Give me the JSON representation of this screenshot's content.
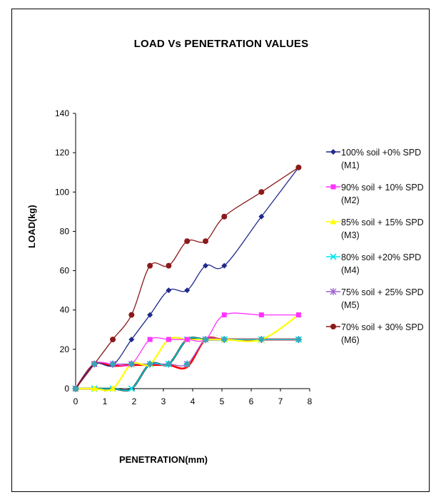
{
  "chart_data": {
    "type": "line",
    "title": "LOAD Vs PENETRATION VALUES",
    "xlabel": "PENETRATION(mm)",
    "ylabel": "LOAD(kg)",
    "xlim": [
      0,
      8
    ],
    "ylim": [
      0,
      140
    ],
    "xticks": [
      "0",
      "1",
      "2",
      "3",
      "4",
      "5",
      "6",
      "7",
      "8"
    ],
    "yticks": [
      "0",
      "20",
      "40",
      "60",
      "80",
      "100",
      "120",
      "140"
    ],
    "grid": false,
    "legend_position": "right",
    "series": [
      {
        "name": "100% soil +0% SPD (M1)",
        "label_lines": [
          "100% soil +0% SPD",
          "(M1)"
        ],
        "color": "#1f2a8c",
        "marker": "diamond",
        "x": [
          0,
          0.64,
          1.27,
          1.91,
          2.54,
          3.18,
          3.81,
          4.44,
          5.08,
          6.35,
          7.62
        ],
        "y": [
          0,
          12.5,
          12,
          25,
          37.5,
          50,
          50,
          62.5,
          62.5,
          87.5,
          112.5
        ]
      },
      {
        "name": "90% soil + 10% SPD (M2)",
        "label_lines": [
          "90% soil + 10% SPD",
          "(M2)"
        ],
        "color": "#ff33ff",
        "marker": "square",
        "x": [
          0,
          0.64,
          1.27,
          1.91,
          2.54,
          3.18,
          3.81,
          4.44,
          5.08,
          6.35,
          7.62
        ],
        "y": [
          0,
          12.5,
          12.5,
          12.5,
          25,
          25,
          25,
          25,
          37.5,
          37.5,
          37.5
        ]
      },
      {
        "name": "85% soil + 15% SPD (M3)",
        "label_lines": [
          "85% soil + 15% SPD",
          "(M3)"
        ],
        "color": "#ffff00",
        "marker": "triangle",
        "x": [
          0,
          0.64,
          1.27,
          1.91,
          2.54,
          3.18,
          3.81,
          4.44,
          5.08,
          6.35,
          7.62
        ],
        "y": [
          0,
          0,
          0,
          12.5,
          12.5,
          25,
          25,
          25,
          25,
          25,
          37.5
        ]
      },
      {
        "name": "80% soil +20% SPD (M4)",
        "label_lines": [
          "80% soil +20% SPD",
          "(M4)"
        ],
        "color": "#00e5ee",
        "marker": "x",
        "x": [
          0,
          0.64,
          1.27,
          1.91,
          2.54,
          3.18,
          3.81,
          4.44,
          5.08,
          6.35,
          7.62
        ],
        "y": [
          0,
          0,
          0,
          0,
          12.5,
          12.5,
          25,
          25,
          25,
          25,
          25
        ]
      },
      {
        "name": "75% soil + 25% SPD (M5)",
        "label_lines": [
          "75% soil + 25% SPD",
          "(M5)"
        ],
        "color": "#a060d0",
        "marker": "star",
        "x": [
          0,
          0.64,
          1.27,
          1.91,
          2.54,
          3.18,
          3.81,
          4.44,
          5.08,
          6.35,
          7.62
        ],
        "y": [
          0,
          12.5,
          12.5,
          12.5,
          12.5,
          12.5,
          12.5,
          25,
          25,
          25,
          25
        ]
      },
      {
        "name": "70% soil + 30% SPD (M6)",
        "label_lines": [
          "70% soil + 30% SPD",
          "(M6)"
        ],
        "color": "#8b1a1a",
        "marker": "circle",
        "x": [
          0,
          0.64,
          1.27,
          1.91,
          2.54,
          3.18,
          3.81,
          4.44,
          5.08,
          6.35,
          7.62
        ],
        "y": [
          0,
          12.5,
          25,
          37.5,
          62.5,
          62.5,
          75,
          75,
          87.5,
          100,
          112.5
        ]
      },
      {
        "name": "",
        "label_lines": [],
        "legend": false,
        "color": "#ff0000",
        "marker": "none",
        "x": [
          0,
          0.64,
          1.27,
          1.91,
          2.54,
          3.18,
          3.81,
          4.44,
          5.08,
          6.35,
          7.62
        ],
        "y": [
          0,
          12.5,
          11.5,
          12,
          12,
          12,
          11,
          25,
          25,
          25,
          25
        ]
      },
      {
        "name": "",
        "label_lines": [],
        "legend": false,
        "color": "#111111",
        "marker": "none",
        "x": [
          0,
          0.64,
          1.27,
          1.91,
          2.54,
          3.18,
          3.81,
          4.44,
          5.08,
          6.35,
          7.62
        ],
        "y": [
          0,
          0,
          0,
          0,
          12.5,
          12.5,
          25,
          25,
          25,
          25,
          25
        ]
      },
      {
        "name": "",
        "label_lines": [],
        "legend": false,
        "color": "#3ba6b8",
        "marker": "diamond-teal",
        "x": [
          0,
          0.64,
          1.27,
          1.91,
          2.54,
          3.18,
          3.81,
          4.44,
          5.08,
          6.35,
          7.62
        ],
        "y": [
          0,
          12.5,
          12.5,
          12.5,
          12.5,
          12.5,
          12.5,
          25,
          25,
          25,
          25
        ]
      }
    ]
  }
}
